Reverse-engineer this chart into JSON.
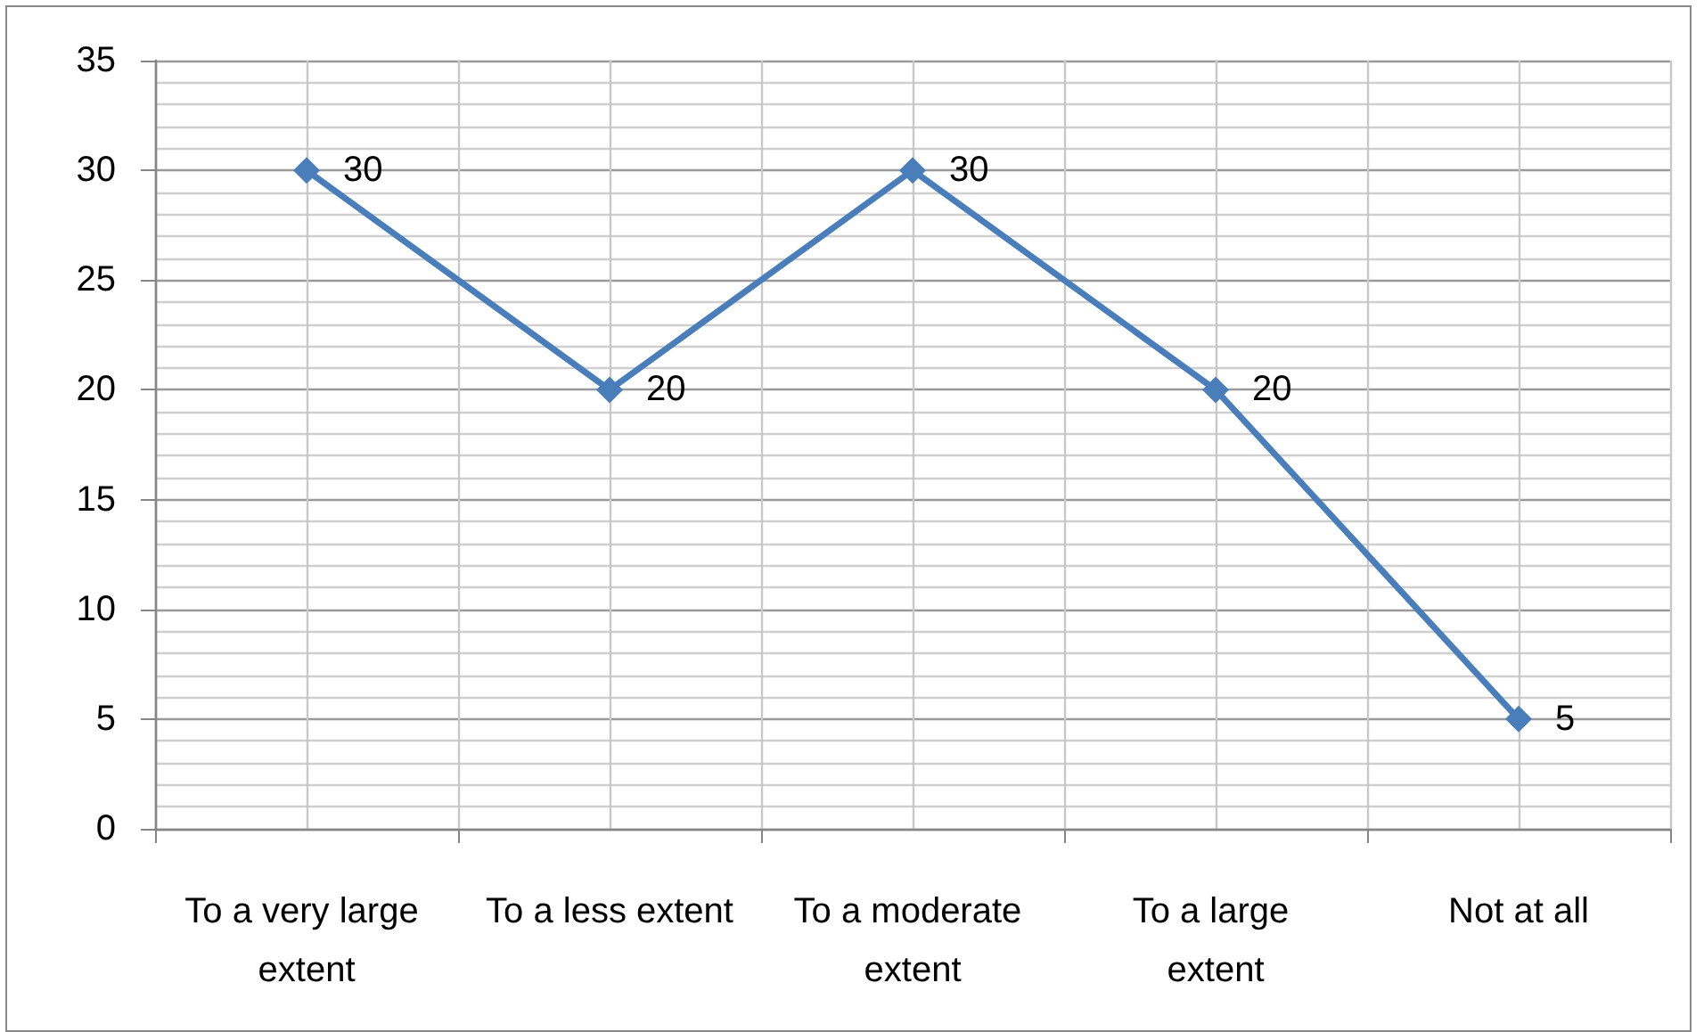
{
  "chart_data": {
    "type": "line",
    "categories": [
      "To a very large extent",
      "To a less extent",
      "To a moderate extent",
      "To a large extent",
      "Not at all"
    ],
    "values": [
      30,
      20,
      30,
      20,
      5
    ],
    "color": "#4a7ebb",
    "ylim": [
      0,
      35
    ],
    "yticks": [
      0,
      5,
      10,
      15,
      20,
      25,
      30,
      35
    ],
    "grid": true,
    "marker": "diamond",
    "line_style": "solid",
    "data_labels": true
  }
}
